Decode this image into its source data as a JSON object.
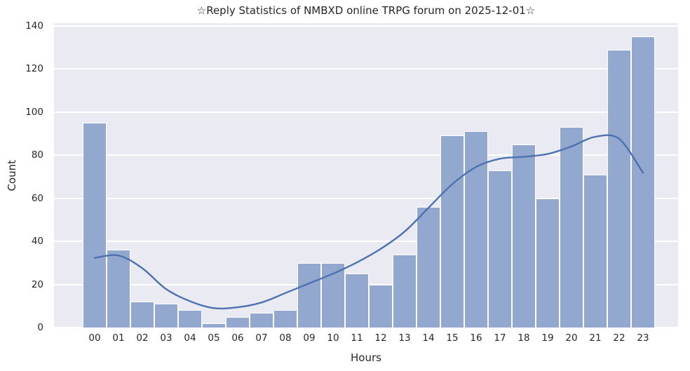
{
  "chart_data": {
    "type": "bar",
    "subtype": "histogram_with_trend_line",
    "title": "☆Reply Statistics of NMBXD online TRPG forum on 2025-12-01☆",
    "xlabel": "Hours",
    "ylabel": "Count",
    "categories": [
      "00",
      "01",
      "02",
      "03",
      "04",
      "05",
      "06",
      "07",
      "08",
      "09",
      "10",
      "11",
      "12",
      "13",
      "14",
      "15",
      "16",
      "17",
      "18",
      "19",
      "20",
      "21",
      "22",
      "23"
    ],
    "values": [
      95,
      36,
      12,
      11,
      8,
      2,
      5,
      7,
      8,
      30,
      30,
      25,
      20,
      34,
      56,
      89,
      91,
      73,
      85,
      60,
      93,
      71,
      129,
      135
    ],
    "trend_line": [
      32.3,
      33.4,
      27.5,
      17.8,
      12.2,
      9.0,
      9.4,
      11.6,
      16.0,
      20.5,
      25.0,
      30.2,
      36.5,
      44.5,
      55.5,
      66.5,
      74.5,
      78.3,
      79.2,
      80.5,
      84.0,
      88.5,
      87.5,
      71.8
    ],
    "yticks": [
      0,
      20,
      40,
      60,
      80,
      100,
      120,
      140
    ],
    "ylim": [
      0,
      140
    ],
    "grid": true,
    "legend_position": "none",
    "colors": {
      "bar_fill": "#93a8ce",
      "bar_edge": "#ffffff",
      "trend_line": "#4c72b0",
      "plot_background": "#eaeaf2",
      "gridline": "#ffffff",
      "text": "#262626"
    }
  }
}
